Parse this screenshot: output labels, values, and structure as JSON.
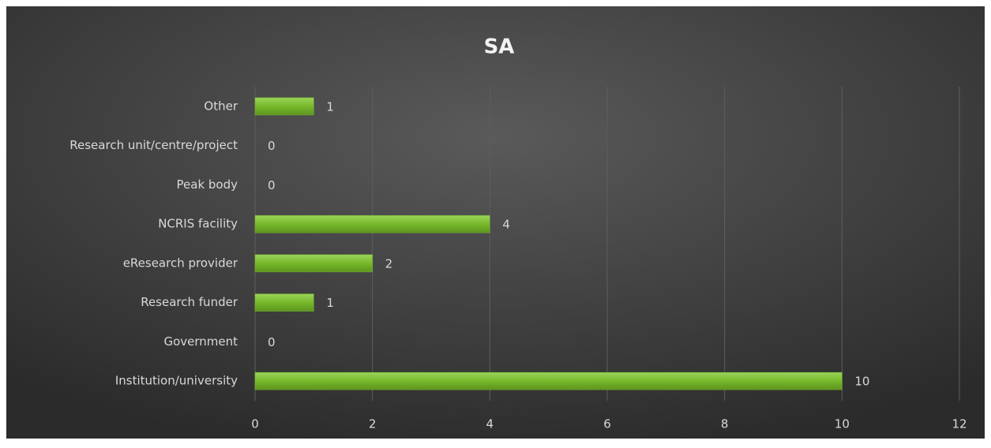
{
  "chart_data": {
    "type": "bar",
    "orientation": "horizontal",
    "title": "SA",
    "categories": [
      "Other",
      "Research unit/centre/project",
      "Peak body",
      "NCRIS facility",
      "eResearch provider",
      "Research funder",
      "Government",
      "Institution/university"
    ],
    "values": [
      1,
      0,
      0,
      4,
      2,
      1,
      0,
      10
    ],
    "color": "#76b82a",
    "xlim": [
      0,
      12
    ],
    "xticks": [
      0,
      2,
      4,
      6,
      8,
      10,
      12
    ],
    "grid": true
  }
}
